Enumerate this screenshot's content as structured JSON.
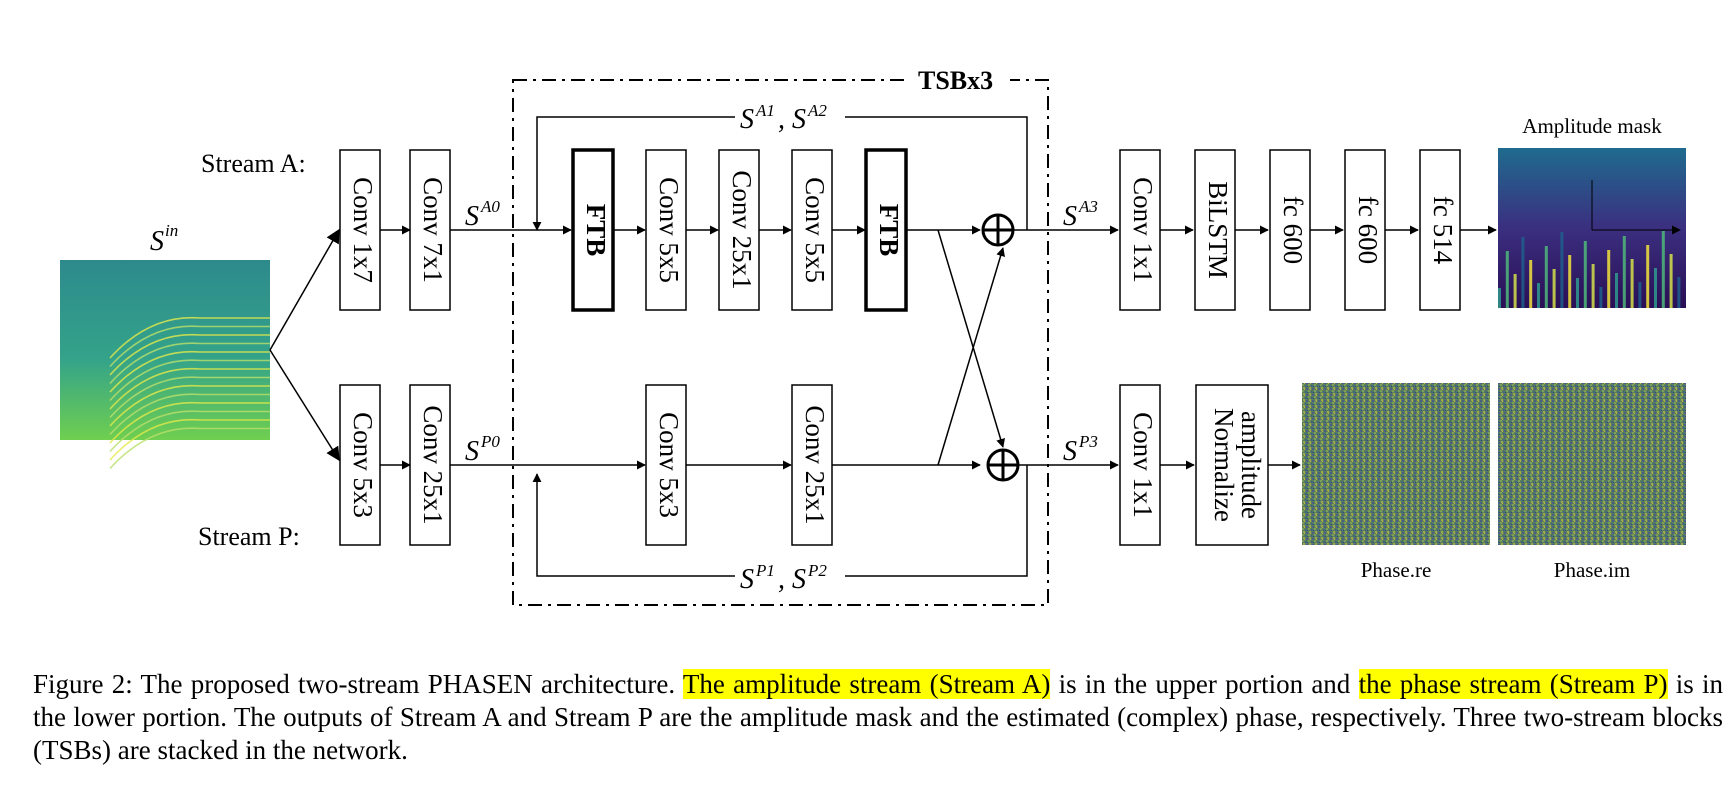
{
  "figure": {
    "stream_a_label": "Stream A:",
    "stream_p_label": "Stream P:",
    "input_symbol": "S",
    "input_sup": "in",
    "tsb_title": "TSBx3",
    "stream_a_pre": [
      "Conv 1x7",
      "Conv 7x1"
    ],
    "stream_p_pre": [
      "Conv 5x3",
      "Conv 25x1"
    ],
    "tsb_a_blocks": [
      "FTB",
      "Conv 5x5",
      "Conv 25x1",
      "Conv 5x5",
      "FTB"
    ],
    "tsb_p_blocks": [
      "Conv 5x3",
      "Conv 25x1"
    ],
    "stream_a_post": [
      "Conv 1x1",
      "BiLSTM",
      "fc 600",
      "fc 600",
      "fc 514"
    ],
    "stream_p_post": [
      "Conv 1x1"
    ],
    "normalize_line1": "Normalize",
    "normalize_line2": "amplitude",
    "sym_a0": "S",
    "sup_a0": "A0",
    "sym_p0": "S",
    "sup_p0": "P0",
    "sym_a3": "S",
    "sup_a3": "A3",
    "sym_p3": "S",
    "sup_p3": "P3",
    "sym_a12_1": "S",
    "sup_a12_1": "A1",
    "sym_a12_sep": ", ",
    "sym_a12_2": "S",
    "sup_a12_2": "A2",
    "sym_p12_1": "S",
    "sup_p12_1": "P1",
    "sym_p12_sep": ", ",
    "sym_p12_2": "S",
    "sup_p12_2": "P2",
    "amplitude_mask_label": "Amplitude mask",
    "phase_re_label": "Phase.re",
    "phase_im_label": "Phase.im"
  },
  "caption": {
    "part1": "Figure 2: The proposed two-stream PHASEN architecture. ",
    "hl1": "The amplitude stream (Stream A)",
    "part2": " is in the upper portion and ",
    "hl2": "the phase stream (Stream P)",
    "part3": " is in the lower portion. The outputs of Stream A and Stream P are the amplitude mask and the estimated (complex) phase, respectively. Three two-stream blocks (TSBs) are stacked in the network."
  },
  "colors": {
    "highlight": "#ffff00",
    "spectrogram_base": "#2e8f8a",
    "mask_base": "#34196b",
    "phase_base": "#55805a"
  }
}
